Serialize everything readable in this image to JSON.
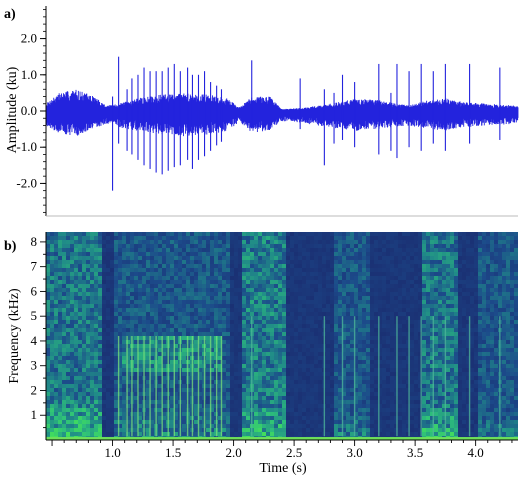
{
  "chart_data": [
    {
      "panel": "a)",
      "type": "line",
      "title": "",
      "xlabel": "",
      "ylabel": "Amplitude (ku)",
      "xlim": [
        0.45,
        4.35
      ],
      "ylim": [
        -2.9,
        2.9
      ],
      "yticks": [
        2.0,
        1.0,
        0.0,
        -1.0,
        -2.0
      ],
      "ytick_labels": [
        "2.0",
        "1.0",
        "0.0",
        "-1.0",
        "-2.0"
      ],
      "grid": false,
      "color": "#2323dd",
      "series": [
        {
          "envelope": [
            {
              "t": 0.45,
              "hi": 0.2,
              "lo": -0.4
            },
            {
              "t": 0.55,
              "hi": 0.5,
              "lo": -0.6
            },
            {
              "t": 0.7,
              "hi": 0.6,
              "lo": -0.7
            },
            {
              "t": 0.85,
              "hi": 0.4,
              "lo": -0.5
            },
            {
              "t": 0.95,
              "hi": 0.15,
              "lo": -0.35
            },
            {
              "t": 1.05,
              "hi": 0.2,
              "lo": -0.45
            },
            {
              "t": 1.2,
              "hi": 0.35,
              "lo": -0.55
            },
            {
              "t": 1.4,
              "hi": 0.45,
              "lo": -0.65
            },
            {
              "t": 1.6,
              "hi": 0.5,
              "lo": -0.7
            },
            {
              "t": 1.8,
              "hi": 0.45,
              "lo": -0.65
            },
            {
              "t": 1.95,
              "hi": 0.35,
              "lo": -0.55
            },
            {
              "t": 2.05,
              "hi": 0.1,
              "lo": -0.3
            },
            {
              "t": 2.15,
              "hi": 0.4,
              "lo": -0.6
            },
            {
              "t": 2.3,
              "hi": 0.4,
              "lo": -0.55
            },
            {
              "t": 2.4,
              "hi": 0.05,
              "lo": -0.3
            },
            {
              "t": 2.6,
              "hi": 0.1,
              "lo": -0.35
            },
            {
              "t": 2.8,
              "hi": 0.2,
              "lo": -0.45
            },
            {
              "t": 3.0,
              "hi": 0.35,
              "lo": -0.55
            },
            {
              "t": 3.2,
              "hi": 0.3,
              "lo": -0.5
            },
            {
              "t": 3.45,
              "hi": 0.15,
              "lo": -0.4
            },
            {
              "t": 3.6,
              "hi": 0.3,
              "lo": -0.5
            },
            {
              "t": 3.75,
              "hi": 0.35,
              "lo": -0.55
            },
            {
              "t": 3.9,
              "hi": 0.25,
              "lo": -0.45
            },
            {
              "t": 4.1,
              "hi": 0.2,
              "lo": -0.4
            },
            {
              "t": 4.35,
              "hi": 0.15,
              "lo": -0.35
            }
          ],
          "spikes": [
            {
              "t": 1.0,
              "hi": 0.4,
              "lo": -2.2
            },
            {
              "t": 1.05,
              "hi": 1.5,
              "lo": -0.9
            },
            {
              "t": 1.12,
              "hi": 0.6,
              "lo": -1.1
            },
            {
              "t": 1.16,
              "hi": 0.9,
              "lo": -1.2
            },
            {
              "t": 1.21,
              "hi": 1.0,
              "lo": -1.35
            },
            {
              "t": 1.26,
              "hi": 1.2,
              "lo": -1.5
            },
            {
              "t": 1.31,
              "hi": 1.1,
              "lo": -1.6
            },
            {
              "t": 1.36,
              "hi": 1.1,
              "lo": -1.7
            },
            {
              "t": 1.41,
              "hi": 1.1,
              "lo": -1.75
            },
            {
              "t": 1.46,
              "hi": 1.2,
              "lo": -1.65
            },
            {
              "t": 1.51,
              "hi": 1.3,
              "lo": -1.55
            },
            {
              "t": 1.56,
              "hi": 1.1,
              "lo": -1.5
            },
            {
              "t": 1.62,
              "hi": 1.2,
              "lo": -1.35
            },
            {
              "t": 1.66,
              "hi": 1.0,
              "lo": -1.6
            },
            {
              "t": 1.71,
              "hi": 1.0,
              "lo": -1.35
            },
            {
              "t": 1.76,
              "hi": 1.1,
              "lo": -1.25
            },
            {
              "t": 1.81,
              "hi": 0.8,
              "lo": -1.1
            },
            {
              "t": 1.86,
              "hi": 0.7,
              "lo": -0.95
            },
            {
              "t": 1.9,
              "hi": 0.6,
              "lo": -0.85
            },
            {
              "t": 2.15,
              "hi": 1.4,
              "lo": -0.4
            },
            {
              "t": 2.55,
              "hi": 0.9,
              "lo": -0.5
            },
            {
              "t": 2.75,
              "hi": 0.6,
              "lo": -1.5
            },
            {
              "t": 2.83,
              "hi": 0.5,
              "lo": -0.9
            },
            {
              "t": 2.9,
              "hi": 1.0,
              "lo": -0.8
            },
            {
              "t": 3.0,
              "hi": 0.8,
              "lo": -1.0
            },
            {
              "t": 3.2,
              "hi": 1.3,
              "lo": -1.2
            },
            {
              "t": 3.3,
              "hi": 0.5,
              "lo": -1.1
            },
            {
              "t": 3.35,
              "hi": 1.3,
              "lo": -1.3
            },
            {
              "t": 3.45,
              "hi": 1.1,
              "lo": -1.0
            },
            {
              "t": 3.55,
              "hi": 1.3,
              "lo": -1.1
            },
            {
              "t": 3.65,
              "hi": 1.1,
              "lo": -0.9
            },
            {
              "t": 3.75,
              "hi": 1.3,
              "lo": -1.1
            },
            {
              "t": 3.95,
              "hi": 1.3,
              "lo": -0.9
            },
            {
              "t": 4.2,
              "hi": 1.2,
              "lo": -0.8
            }
          ]
        }
      ]
    },
    {
      "panel": "b)",
      "type": "heatmap",
      "title": "",
      "xlabel": "Time (s)",
      "ylabel": "Frequency (kHz)",
      "xlim": [
        0.45,
        4.35
      ],
      "ylim": [
        0,
        8.4
      ],
      "xticks": [
        1.0,
        1.5,
        2.0,
        2.5,
        3.0,
        3.5,
        4.0
      ],
      "xtick_labels": [
        "1.0",
        "1.5",
        "2.0",
        "2.5",
        "3.0",
        "3.5",
        "4.0"
      ],
      "yticks": [
        1,
        2,
        3,
        4,
        5,
        6,
        7,
        8
      ],
      "ytick_labels": [
        "1",
        "2",
        "3",
        "4",
        "5",
        "6",
        "7",
        "8"
      ],
      "grid": false,
      "colormap": [
        "#1a2a6e",
        "#1c4a8a",
        "#208a88",
        "#2ec07a",
        "#44e05a"
      ],
      "energy_regions": [
        {
          "t0": 0.45,
          "t1": 0.9,
          "f_max": 2.2,
          "level": 0.95
        },
        {
          "t0": 0.45,
          "t1": 0.9,
          "f_max": 8.4,
          "level": 0.5
        },
        {
          "t0": 1.0,
          "t1": 1.95,
          "f_max": 2.0,
          "level": 0.6
        },
        {
          "t0": 1.0,
          "t1": 1.95,
          "f_max": 8.4,
          "level": 0.35
        },
        {
          "t0": 2.05,
          "t1": 2.4,
          "f_max": 1.8,
          "level": 0.95
        },
        {
          "t0": 2.05,
          "t1": 2.4,
          "f_max": 8.4,
          "level": 0.55
        },
        {
          "t0": 2.8,
          "t1": 3.1,
          "f_max": 1.5,
          "level": 0.6
        },
        {
          "t0": 2.8,
          "t1": 3.1,
          "f_max": 8.4,
          "level": 0.35
        },
        {
          "t0": 3.55,
          "t1": 3.85,
          "f_max": 1.8,
          "level": 0.9
        },
        {
          "t0": 3.55,
          "t1": 3.85,
          "f_max": 8.4,
          "level": 0.5
        },
        {
          "t0": 4.0,
          "t1": 4.35,
          "f_max": 1.5,
          "level": 0.55
        },
        {
          "t0": 4.0,
          "t1": 4.35,
          "f_max": 8.4,
          "level": 0.35
        }
      ],
      "harmonic_bands": [
        {
          "t0": 1.05,
          "t1": 1.9,
          "f0": 2.9,
          "f1": 4.3,
          "level": 0.85
        }
      ],
      "vertical_streaks": [
        1.05,
        1.12,
        1.16,
        1.21,
        1.26,
        1.31,
        1.36,
        1.41,
        1.46,
        1.51,
        1.56,
        1.62,
        1.66,
        1.71,
        1.76,
        1.81,
        1.86,
        1.9,
        2.15,
        2.75,
        2.9,
        3.0,
        3.2,
        3.35,
        3.45,
        3.55,
        3.65,
        3.75,
        3.95,
        4.2
      ],
      "floor_band": {
        "f0": 0.0,
        "f1": 0.12,
        "level": 1.0
      }
    }
  ]
}
